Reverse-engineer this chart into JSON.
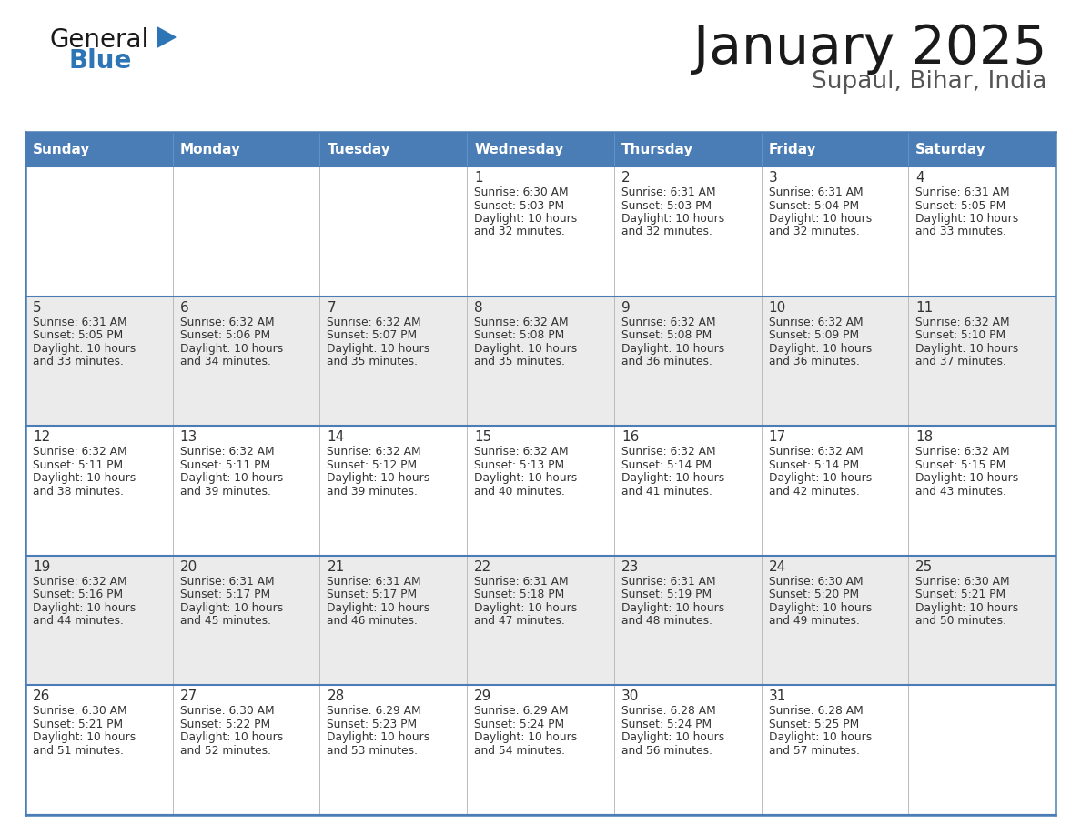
{
  "title": "January 2025",
  "subtitle": "Supaul, Bihar, India",
  "header_bg": "#4A7DB5",
  "header_text_color": "#FFFFFF",
  "day_names": [
    "Sunday",
    "Monday",
    "Tuesday",
    "Wednesday",
    "Thursday",
    "Friday",
    "Saturday"
  ],
  "odd_row_bg": "#FFFFFF",
  "even_row_bg": "#EBEBEB",
  "cell_text_color": "#333333",
  "day_number_color": "#333333",
  "border_color": "#4A7DB5",
  "grid_color": "#AAAAAA",
  "general_color": "#1A1A1A",
  "blue_color": "#2E75B6",
  "calendar": [
    [
      null,
      null,
      null,
      {
        "day": 1,
        "sunrise": "6:30 AM",
        "sunset": "5:03 PM",
        "daylight": "10 hours and 32 minutes."
      },
      {
        "day": 2,
        "sunrise": "6:31 AM",
        "sunset": "5:03 PM",
        "daylight": "10 hours and 32 minutes."
      },
      {
        "day": 3,
        "sunrise": "6:31 AM",
        "sunset": "5:04 PM",
        "daylight": "10 hours and 32 minutes."
      },
      {
        "day": 4,
        "sunrise": "6:31 AM",
        "sunset": "5:05 PM",
        "daylight": "10 hours and 33 minutes."
      }
    ],
    [
      {
        "day": 5,
        "sunrise": "6:31 AM",
        "sunset": "5:05 PM",
        "daylight": "10 hours and 33 minutes."
      },
      {
        "day": 6,
        "sunrise": "6:32 AM",
        "sunset": "5:06 PM",
        "daylight": "10 hours and 34 minutes."
      },
      {
        "day": 7,
        "sunrise": "6:32 AM",
        "sunset": "5:07 PM",
        "daylight": "10 hours and 35 minutes."
      },
      {
        "day": 8,
        "sunrise": "6:32 AM",
        "sunset": "5:08 PM",
        "daylight": "10 hours and 35 minutes."
      },
      {
        "day": 9,
        "sunrise": "6:32 AM",
        "sunset": "5:08 PM",
        "daylight": "10 hours and 36 minutes."
      },
      {
        "day": 10,
        "sunrise": "6:32 AM",
        "sunset": "5:09 PM",
        "daylight": "10 hours and 36 minutes."
      },
      {
        "day": 11,
        "sunrise": "6:32 AM",
        "sunset": "5:10 PM",
        "daylight": "10 hours and 37 minutes."
      }
    ],
    [
      {
        "day": 12,
        "sunrise": "6:32 AM",
        "sunset": "5:11 PM",
        "daylight": "10 hours and 38 minutes."
      },
      {
        "day": 13,
        "sunrise": "6:32 AM",
        "sunset": "5:11 PM",
        "daylight": "10 hours and 39 minutes."
      },
      {
        "day": 14,
        "sunrise": "6:32 AM",
        "sunset": "5:12 PM",
        "daylight": "10 hours and 39 minutes."
      },
      {
        "day": 15,
        "sunrise": "6:32 AM",
        "sunset": "5:13 PM",
        "daylight": "10 hours and 40 minutes."
      },
      {
        "day": 16,
        "sunrise": "6:32 AM",
        "sunset": "5:14 PM",
        "daylight": "10 hours and 41 minutes."
      },
      {
        "day": 17,
        "sunrise": "6:32 AM",
        "sunset": "5:14 PM",
        "daylight": "10 hours and 42 minutes."
      },
      {
        "day": 18,
        "sunrise": "6:32 AM",
        "sunset": "5:15 PM",
        "daylight": "10 hours and 43 minutes."
      }
    ],
    [
      {
        "day": 19,
        "sunrise": "6:32 AM",
        "sunset": "5:16 PM",
        "daylight": "10 hours and 44 minutes."
      },
      {
        "day": 20,
        "sunrise": "6:31 AM",
        "sunset": "5:17 PM",
        "daylight": "10 hours and 45 minutes."
      },
      {
        "day": 21,
        "sunrise": "6:31 AM",
        "sunset": "5:17 PM",
        "daylight": "10 hours and 46 minutes."
      },
      {
        "day": 22,
        "sunrise": "6:31 AM",
        "sunset": "5:18 PM",
        "daylight": "10 hours and 47 minutes."
      },
      {
        "day": 23,
        "sunrise": "6:31 AM",
        "sunset": "5:19 PM",
        "daylight": "10 hours and 48 minutes."
      },
      {
        "day": 24,
        "sunrise": "6:30 AM",
        "sunset": "5:20 PM",
        "daylight": "10 hours and 49 minutes."
      },
      {
        "day": 25,
        "sunrise": "6:30 AM",
        "sunset": "5:21 PM",
        "daylight": "10 hours and 50 minutes."
      }
    ],
    [
      {
        "day": 26,
        "sunrise": "6:30 AM",
        "sunset": "5:21 PM",
        "daylight": "10 hours and 51 minutes."
      },
      {
        "day": 27,
        "sunrise": "6:30 AM",
        "sunset": "5:22 PM",
        "daylight": "10 hours and 52 minutes."
      },
      {
        "day": 28,
        "sunrise": "6:29 AM",
        "sunset": "5:23 PM",
        "daylight": "10 hours and 53 minutes."
      },
      {
        "day": 29,
        "sunrise": "6:29 AM",
        "sunset": "5:24 PM",
        "daylight": "10 hours and 54 minutes."
      },
      {
        "day": 30,
        "sunrise": "6:28 AM",
        "sunset": "5:24 PM",
        "daylight": "10 hours and 56 minutes."
      },
      {
        "day": 31,
        "sunrise": "6:28 AM",
        "sunset": "5:25 PM",
        "daylight": "10 hours and 57 minutes."
      },
      null
    ]
  ]
}
